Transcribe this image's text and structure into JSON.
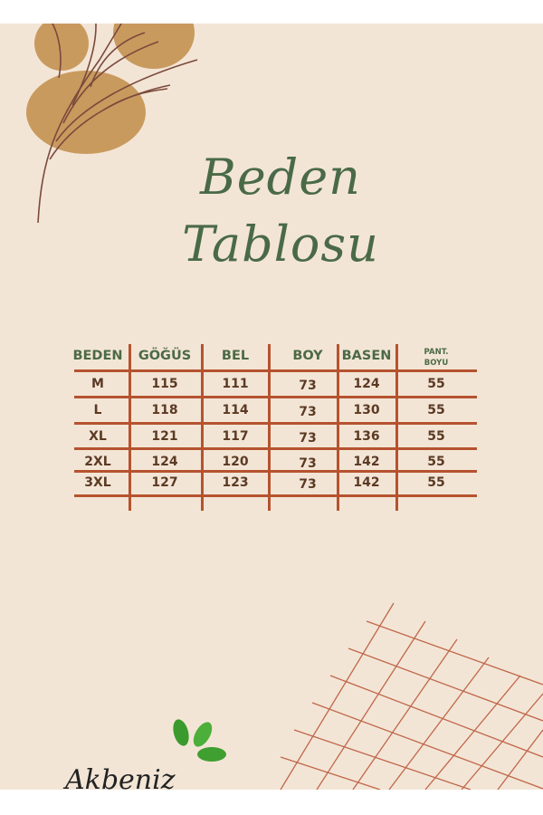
{
  "title": {
    "line1": "Beden",
    "line2": "Tablosu"
  },
  "table": {
    "headers": [
      "BEDEN",
      "GÖĞÜS",
      "BEL",
      "BOY",
      "BASEN"
    ],
    "header_last": {
      "line1": "PANT.",
      "line2": "BOYU"
    },
    "rows": [
      [
        "M",
        "115",
        "111",
        "73",
        "124",
        "55"
      ],
      [
        "L",
        "118",
        "114",
        "73",
        "130",
        "55"
      ],
      [
        "XL",
        "121",
        "117",
        "73",
        "136",
        "55"
      ],
      [
        "2XL",
        "124",
        "120",
        "73",
        "142",
        "55"
      ],
      [
        "3XL",
        "127",
        "123",
        "73",
        "142",
        "55"
      ]
    ]
  },
  "logo": {
    "brand": "Akbeniz",
    "mark": "®"
  },
  "colors": {
    "background": "#f3e5d6",
    "title": "#4a6a47",
    "grid": "#b5532f",
    "header_text": "#4b6a45",
    "cell_text": "#5b3a24",
    "leaf_blob": "#c99a5e",
    "branch": "#7a4a3c",
    "logo_leaf": "#3a9a2e"
  }
}
